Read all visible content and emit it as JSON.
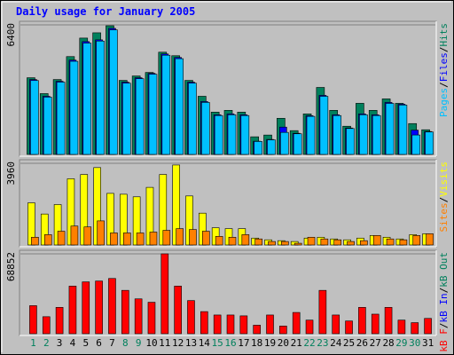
{
  "title": "Daily usage for January 2005",
  "legend_separator": "/",
  "chart_data": [
    {
      "type": "bar",
      "ylim": [
        0,
        6400
      ],
      "yticks": [
        6400
      ],
      "series": [
        {
          "name": "Hits",
          "color": "#00805c",
          "values": [
            3788,
            3004,
            3700,
            4833,
            5747,
            6008,
            6357,
            3657,
            3875,
            4049,
            5050,
            4876,
            3657,
            2873,
            2090,
            2177,
            2090,
            871,
            958,
            1785,
            1176,
            2003,
            3309,
            2177,
            1393,
            2525,
            2177,
            2743,
            2525,
            1524,
            1219
          ]
        },
        {
          "name": "Files",
          "color": "#0000ff",
          "values": [
            3700,
            2873,
            3614,
            4659,
            5573,
            5660,
            6226,
            3570,
            3788,
            4005,
            4963,
            4789,
            3570,
            2612,
            1959,
            2003,
            1959,
            653,
            740,
            1350,
            1045,
            1915,
            2917,
            1959,
            1306,
            2003,
            1959,
            2569,
            2482,
            1200,
            1132
          ]
        },
        {
          "name": "Pages",
          "color": "#00c0ff",
          "values": [
            3650,
            2830,
            3570,
            4600,
            5500,
            5600,
            6150,
            3520,
            3740,
            3960,
            4900,
            4730,
            3520,
            2570,
            1920,
            1960,
            1920,
            640,
            720,
            1088,
            1020,
            1880,
            2870,
            1920,
            1280,
            1960,
            1920,
            2520,
            2440,
            960,
            1110
          ]
        }
      ]
    },
    {
      "type": "bar",
      "ylim": [
        0,
        3960
      ],
      "yticks": [
        3960
      ],
      "series": [
        {
          "name": "Visits",
          "color": "#ffff00",
          "values": [
            2043,
            1500,
            1959,
            3210,
            3418,
            3752,
            2501,
            2459,
            2334,
            2793,
            3418,
            3877,
            2376,
            1542,
            834,
            792,
            792,
            333,
            250,
            208,
            167,
            333,
            375,
            292,
            250,
            333,
            459,
            375,
            292,
            500,
            542
          ]
        },
        {
          "name": "Sites",
          "color": "#ff8000",
          "values": [
            375,
            500,
            667,
            917,
            875,
            1167,
            584,
            584,
            584,
            625,
            709,
            792,
            750,
            667,
            417,
            375,
            500,
            292,
            167,
            167,
            83,
            375,
            292,
            250,
            167,
            208,
            459,
            292,
            250,
            459,
            542
          ]
        }
      ]
    },
    {
      "type": "bar",
      "ylim": [
        0,
        68852
      ],
      "yticks": [
        68852
      ],
      "categories": [
        "1",
        "2",
        "3",
        "4",
        "5",
        "6",
        "7",
        "8",
        "9",
        "10",
        "11",
        "12",
        "13",
        "14",
        "15",
        "16",
        "17",
        "18",
        "19",
        "20",
        "21",
        "22",
        "23",
        "24",
        "25",
        "26",
        "27",
        "28",
        "29",
        "30",
        "31"
      ],
      "x_label_colors": [
        "#00805c",
        "#00805c",
        "#000000",
        "#000000",
        "#000000",
        "#000000",
        "#000000",
        "#00805c",
        "#00805c",
        "#000000",
        "#000000",
        "#000000",
        "#000000",
        "#000000",
        "#00805c",
        "#00805c",
        "#000000",
        "#000000",
        "#000000",
        "#000000",
        "#000000",
        "#00805c",
        "#00805c",
        "#000000",
        "#000000",
        "#000000",
        "#000000",
        "#000000",
        "#00805c",
        "#00805c",
        "#000000"
      ],
      "series": [
        {
          "name": "kB F",
          "color": "#ff0000",
          "values": [
            24172,
            14650,
            22707,
            41019,
            44681,
            45413,
            47611,
            37357,
            30032,
            27101,
            68852,
            41019,
            28566,
            19044,
            16114,
            16114,
            15382,
            7325,
            16114,
            6592,
            18312,
            11720,
            37357,
            16114,
            10987,
            22707,
            16847,
            22707,
            11720,
            9522,
            13185
          ]
        }
      ],
      "legend_only": [
        {
          "name": "kB In",
          "color": "#0000ff"
        },
        {
          "name": "kB Out",
          "color": "#00805c"
        }
      ]
    }
  ]
}
